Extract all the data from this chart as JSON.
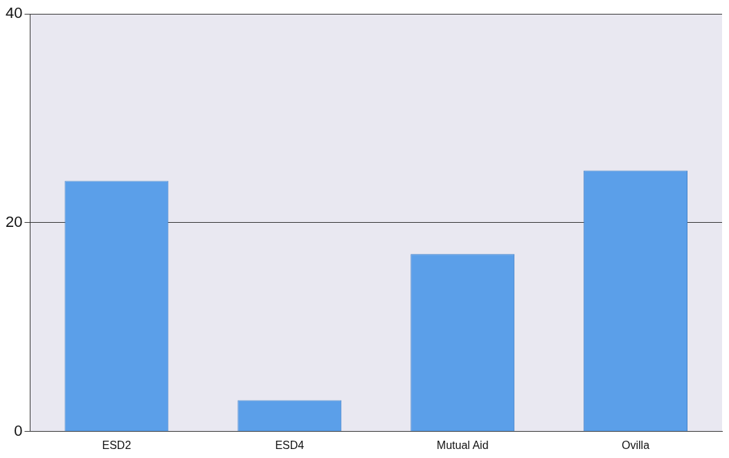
{
  "chart_data": {
    "type": "bar",
    "categories": [
      "ESD2",
      "ESD4",
      "Mutual Aid",
      "Ovilla"
    ],
    "values": [
      24,
      3,
      17,
      25
    ],
    "color": "#5b9fe9",
    "ylim": [
      0,
      40
    ],
    "yticks": [
      0,
      20,
      40
    ],
    "grid": "y",
    "legend": false
  }
}
